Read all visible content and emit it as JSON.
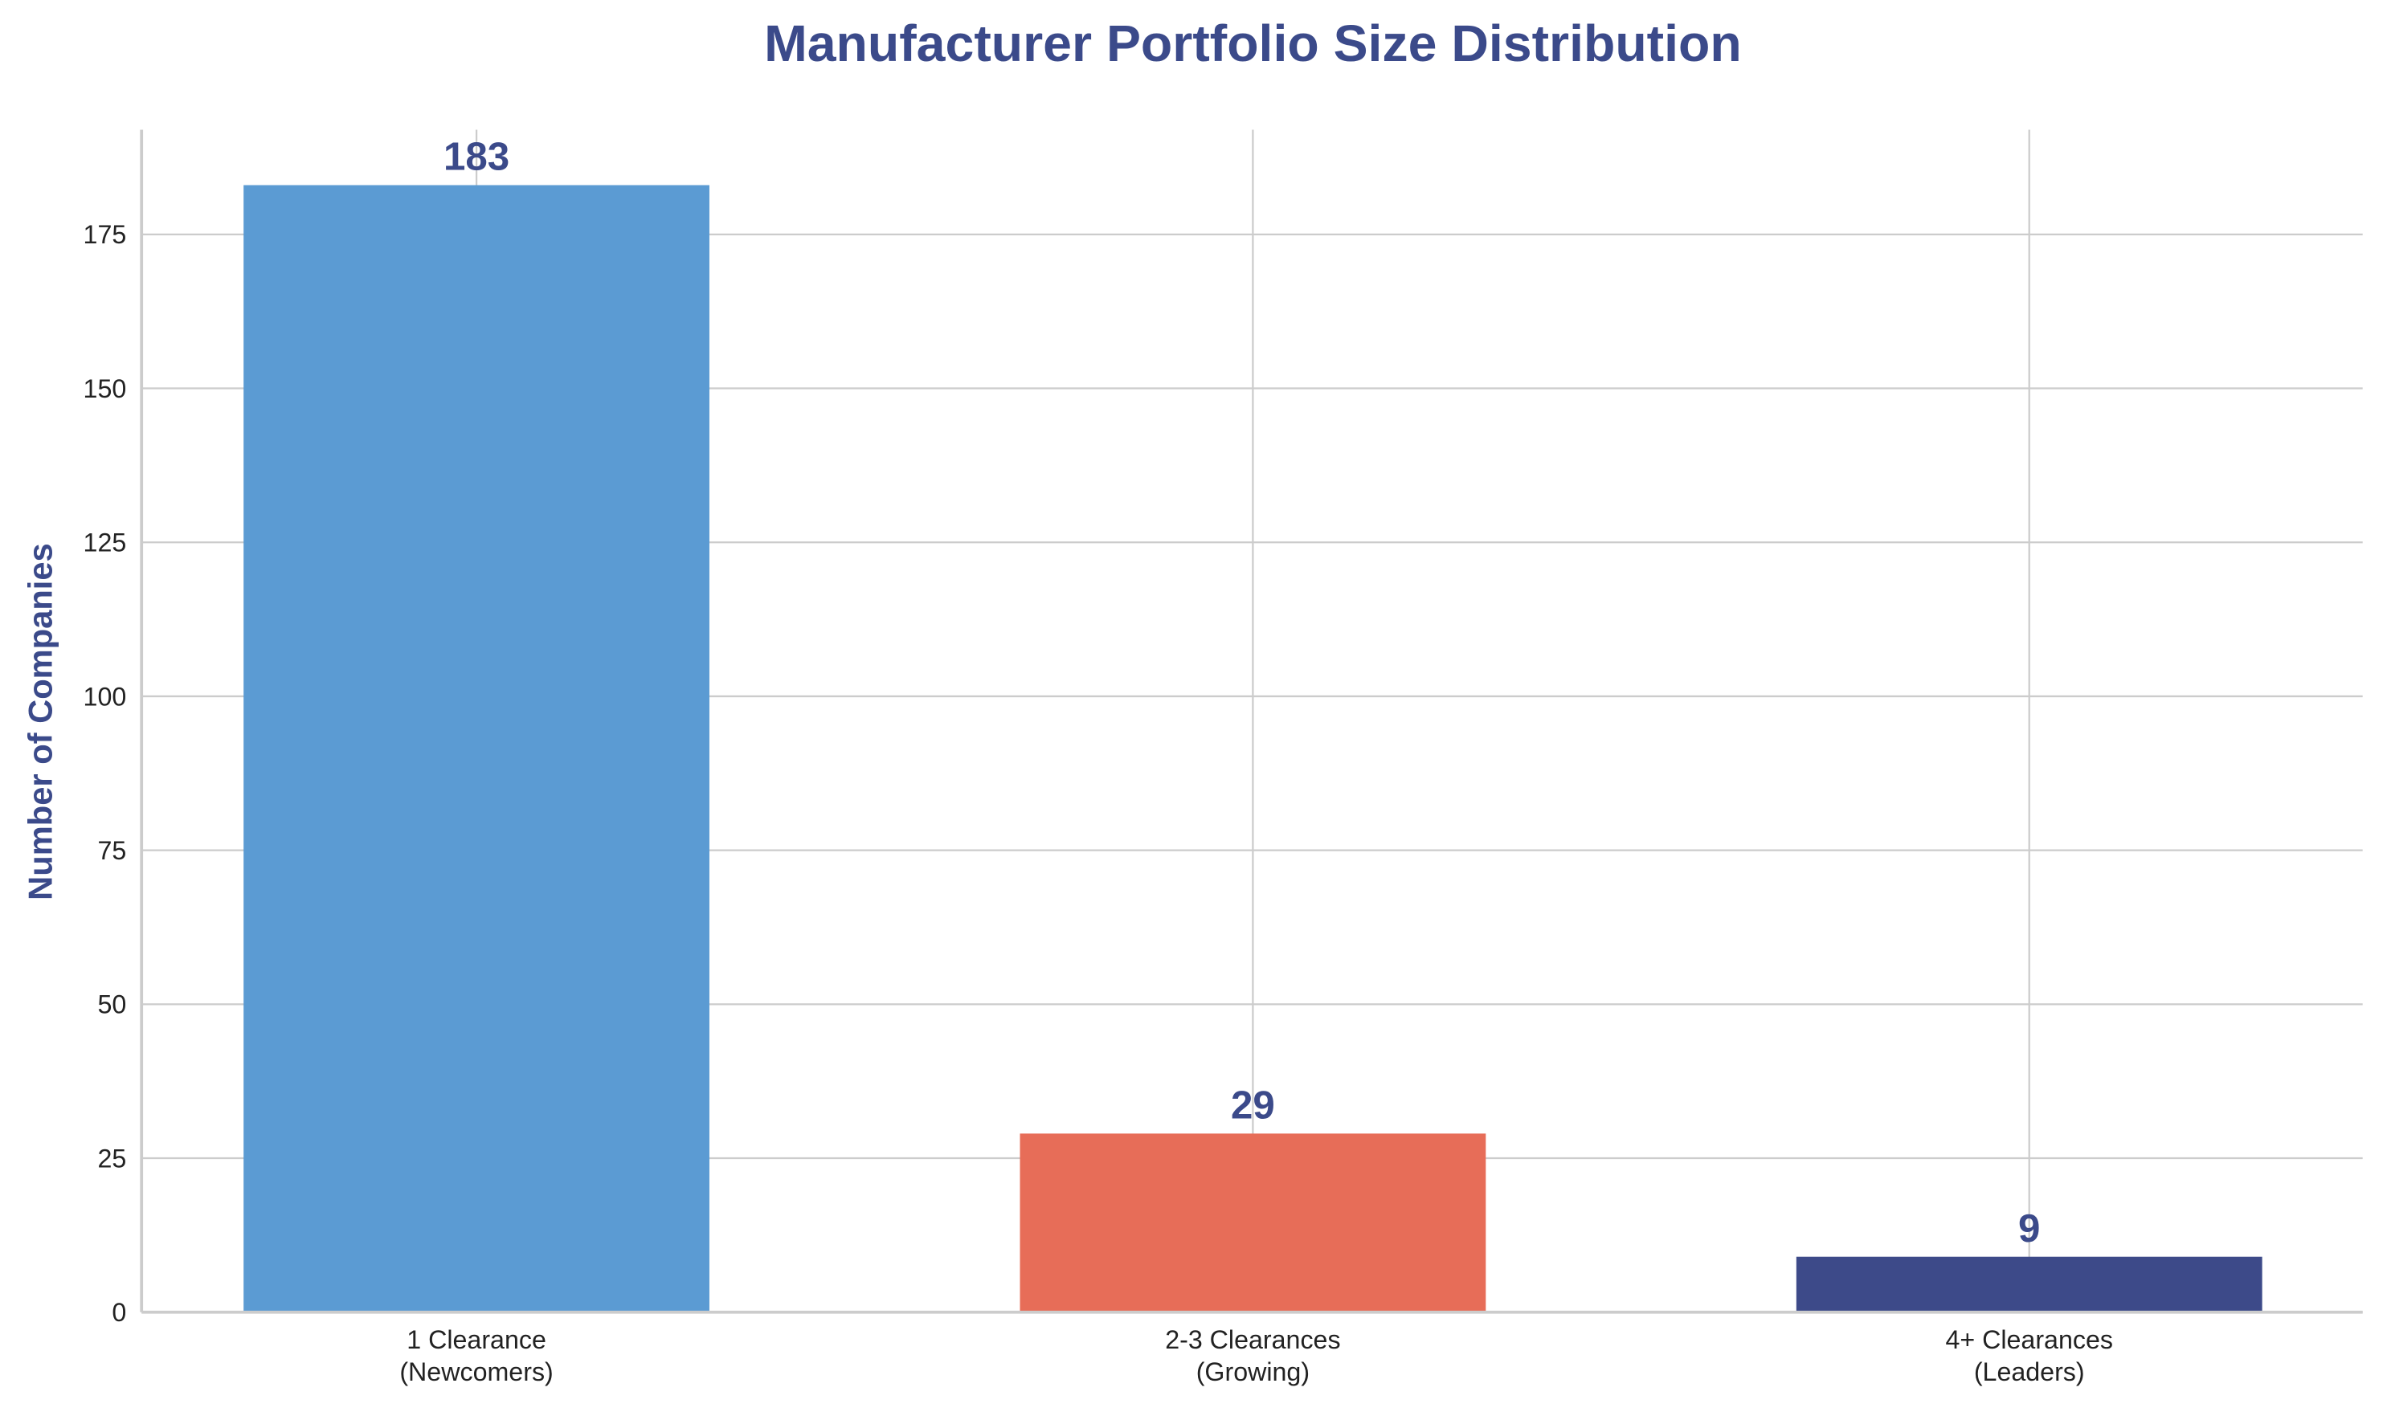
{
  "chart_data": {
    "type": "bar",
    "title": "Manufacturer Portfolio Size Distribution",
    "xlabel": "",
    "ylabel": "Number of Companies",
    "categories": [
      "1 Clearance\n(Newcomers)",
      "2-3 Clearances\n(Growing)",
      "4+ Clearances\n(Leaders)"
    ],
    "values": [
      183,
      29,
      9
    ],
    "data_labels": [
      "183",
      "29",
      "9"
    ],
    "colors": [
      "#5b9bd3",
      "#e76d58",
      "#3d4a89"
    ],
    "ylim": [
      0,
      192
    ],
    "yticks": [
      0,
      25,
      50,
      75,
      100,
      125,
      150,
      175
    ],
    "grid": true,
    "accent_color": "#3b4a8a"
  }
}
